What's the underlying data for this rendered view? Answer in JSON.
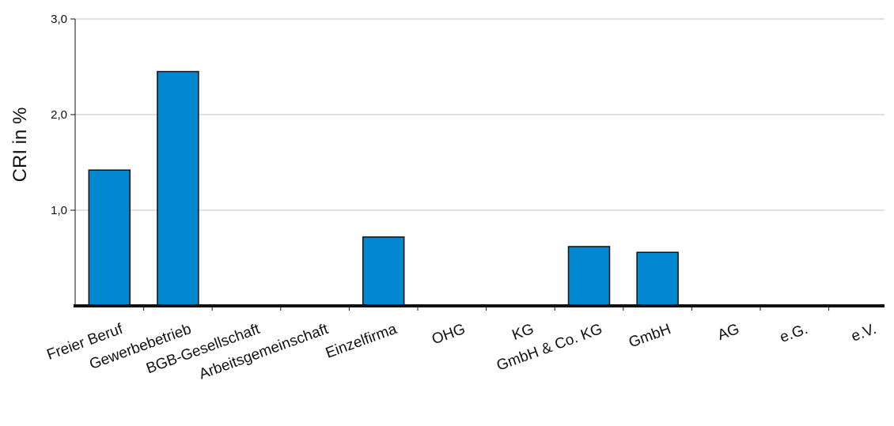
{
  "chart_data": {
    "type": "bar",
    "title": "",
    "xlabel": "",
    "ylabel": "CRI in %",
    "ylim": [
      0,
      3.0
    ],
    "yticks": [
      {
        "value": 1.0,
        "label": "1,0"
      },
      {
        "value": 2.0,
        "label": "2,0"
      },
      {
        "value": 3.0,
        "label": "3,0"
      }
    ],
    "grid": true,
    "legend": "none",
    "categories": [
      "Freier Beruf",
      "Gewerbebetrieb",
      "BGB-Gesellschaft",
      "Arbeitsgemeinschaft",
      "Einzelfirma",
      "OHG",
      "KG",
      "GmbH & Co. KG",
      "GmbH",
      "AG",
      "e.G.",
      "e.V."
    ],
    "values": [
      1.42,
      2.45,
      0,
      0,
      0.72,
      0,
      0,
      0.62,
      0.56,
      0,
      0,
      0
    ],
    "colors": {
      "bar": "#0288d1",
      "bar_stroke": "#111111",
      "grid": "#c0c0c0",
      "axis": "#111111"
    }
  }
}
